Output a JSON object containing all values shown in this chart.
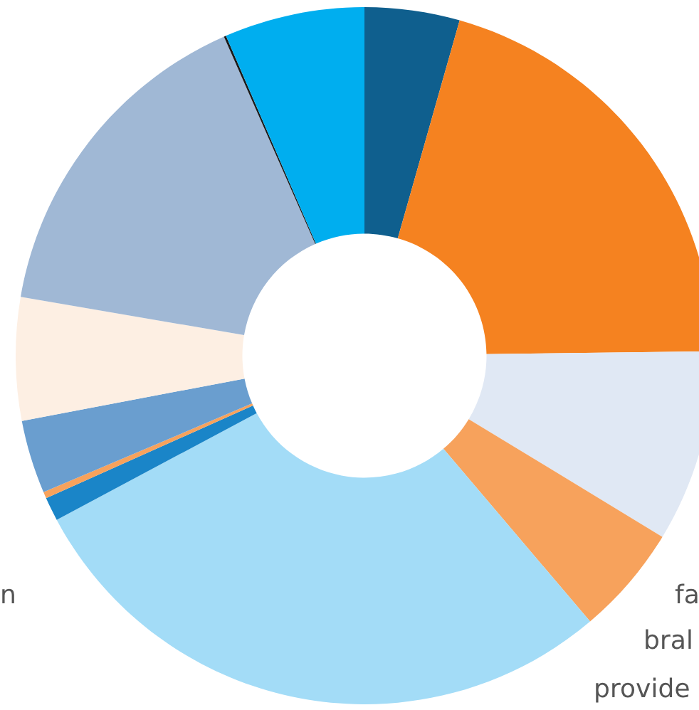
{
  "chart_data": {
    "type": "donut",
    "categories": [
      null,
      null,
      null,
      null,
      null,
      null,
      null,
      null,
      null,
      null,
      null,
      null
    ],
    "values": [
      4.4,
      20.4,
      8.9,
      5.1,
      28.4,
      1.1,
      0.3,
      3.4,
      5.7,
      15.7,
      0.1,
      6.5
    ],
    "colors": [
      "#0f5f8e",
      "#f58220",
      "#e0e8f4",
      "#f7a25c",
      "#a3dcf7",
      "#1a85c8",
      "#f7a25c",
      "#6a9ecf",
      "#fdefe3",
      "#a0b8d5",
      "#1a1a1a",
      "#00aeef"
    ],
    "annotations": [
      "fa",
      "bral",
      "provide",
      "n"
    ]
  }
}
